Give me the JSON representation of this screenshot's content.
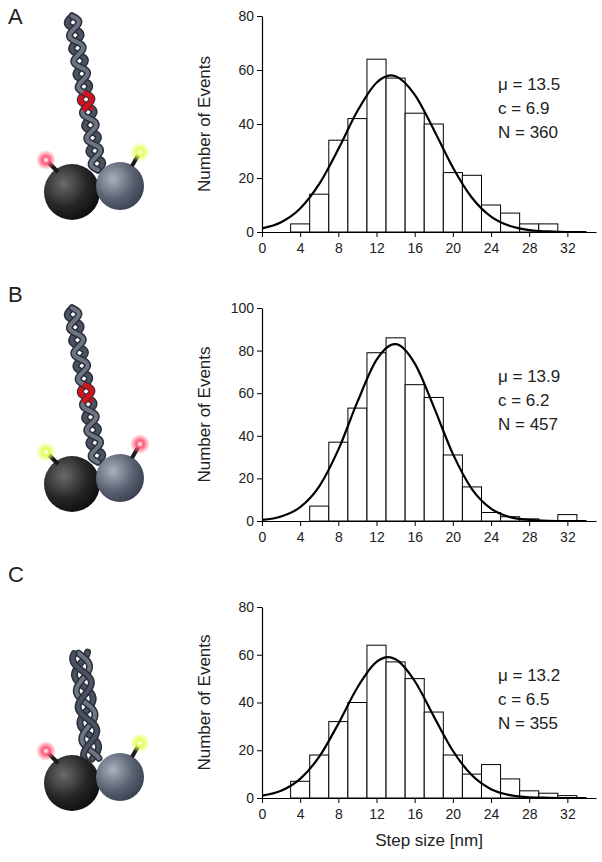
{
  "chart_data": [
    {
      "type": "histogram",
      "panel": "A",
      "ylabel": "Number of Events",
      "bins": [
        3,
        5,
        7,
        9,
        11,
        13,
        15,
        17,
        19,
        21,
        23,
        25,
        27,
        29,
        31
      ],
      "values": [
        3,
        14,
        34,
        42,
        64,
        57,
        44,
        40,
        22,
        21,
        10,
        7,
        3,
        3
      ],
      "color": "#ffffff",
      "series": [
        {
          "type": "line",
          "color": "#000000",
          "x": [
            0,
            2,
            4,
            6,
            8,
            10,
            12,
            13.5,
            14,
            16,
            18,
            20,
            22,
            24,
            26,
            28,
            30,
            32,
            34
          ],
          "values": [
            1.3,
            3.6,
            8.7,
            17.8,
            30.7,
            44.8,
            55.3,
            58,
            57.7,
            50.9,
            37.9,
            23.9,
            12.7,
            5.7,
            2.2,
            0.7,
            0.2,
            0,
            0
          ]
        }
      ],
      "annotations": [
        "μ = 13.5",
        "c = 6.9",
        "N = 360"
      ],
      "xlim": [
        0,
        35
      ],
      "xticks": [
        0,
        4,
        8,
        12,
        16,
        20,
        24,
        28,
        32
      ],
      "ylim": [
        0,
        80
      ],
      "yticks": [
        0,
        20,
        40,
        60,
        80
      ]
    },
    {
      "type": "histogram",
      "panel": "B",
      "ylabel": "Number of Events",
      "bins": [
        5,
        7,
        9,
        11,
        13,
        15,
        17,
        19,
        21,
        23,
        25,
        27,
        29,
        31,
        33
      ],
      "values": [
        7,
        37,
        53,
        79,
        86,
        64,
        58,
        31,
        16,
        4,
        2,
        1,
        0,
        3
      ],
      "color": "#ffffff",
      "series": [
        {
          "type": "line",
          "color": "#000000",
          "x": [
            0,
            2,
            4,
            6,
            8,
            10,
            12,
            13.9,
            14,
            16,
            18,
            20,
            22,
            24,
            26,
            28,
            30,
            32,
            34
          ],
          "values": [
            0.5,
            2.1,
            6.5,
            16.3,
            33.5,
            55.9,
            75.6,
            83,
            83,
            74.0,
            53.6,
            31.5,
            15.0,
            5.8,
            1.8,
            0.5,
            0.1,
            0,
            0
          ]
        }
      ],
      "annotations": [
        "μ = 13.9",
        "c = 6.2",
        "N = 457"
      ],
      "xlim": [
        0,
        35
      ],
      "xticks": [
        0,
        4,
        8,
        12,
        16,
        20,
        24,
        28,
        32
      ],
      "ylim": [
        0,
        100
      ],
      "yticks": [
        0,
        20,
        40,
        60,
        80,
        100
      ]
    },
    {
      "type": "histogram",
      "panel": "C",
      "ylabel": "Number of Events",
      "xlabel": "Step size [nm]",
      "bins": [
        3,
        5,
        7,
        9,
        11,
        13,
        15,
        17,
        19,
        21,
        23,
        25,
        27,
        29,
        31,
        33
      ],
      "values": [
        7,
        18,
        32,
        40,
        64,
        57,
        50,
        36,
        18,
        10,
        14,
        8,
        3,
        2,
        1
      ],
      "color": "#ffffff",
      "series": [
        {
          "type": "line",
          "color": "#000000",
          "x": [
            0,
            2,
            4,
            6,
            8,
            10,
            12,
            13.2,
            14,
            16,
            18,
            20,
            22,
            24,
            26,
            28,
            30,
            32,
            34
          ],
          "values": [
            1.0,
            3.0,
            8.0,
            17.3,
            31.1,
            46.3,
            57.0,
            59,
            58.1,
            49.0,
            34.2,
            19.8,
            9.5,
            3.7,
            1.2,
            0.3,
            0.1,
            0,
            0
          ]
        }
      ],
      "annotations": [
        "μ = 13.2",
        "c = 6.5",
        "N = 355"
      ],
      "xlim": [
        0,
        35
      ],
      "xticks": [
        0,
        4,
        8,
        12,
        16,
        20,
        24,
        28,
        32
      ],
      "ylim": [
        0,
        80
      ],
      "yticks": [
        0,
        20,
        40,
        60,
        80
      ]
    }
  ]
}
